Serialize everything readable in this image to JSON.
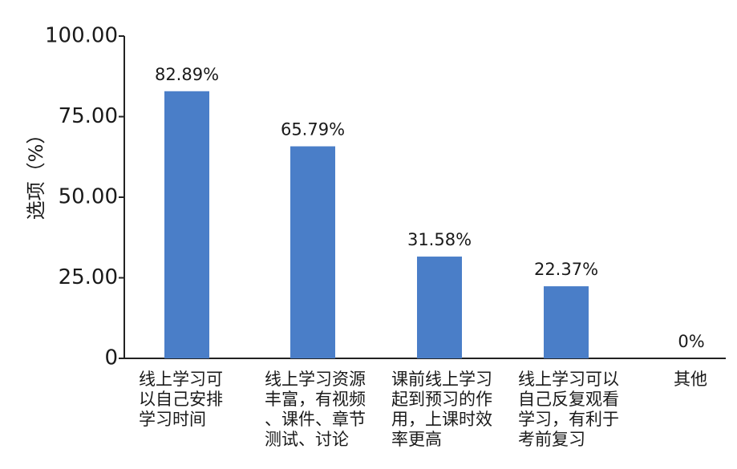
{
  "chart_data": {
    "type": "bar",
    "y_label": "选项（%）",
    "categories": [
      "线上学习可\n以自己安排\n学习时间",
      "线上学习资源\n丰富，有视频\n、课件、章节\n测试、讨论",
      "课前线上学习\n起到预习的作\n用，上课时效\n率更高",
      "线上学习可以\n自己反复观看\n学习，有利于\n考前复习",
      "其他"
    ],
    "values": [
      82.89,
      65.79,
      31.58,
      22.37,
      0
    ],
    "value_labels": [
      "82.89%",
      "65.79%",
      "31.58%",
      "22.37%",
      "0%"
    ],
    "color": "#4a7ec8",
    "ylim": [
      0,
      100
    ],
    "yticks": [
      {
        "value": 0,
        "label": "0"
      },
      {
        "value": 25,
        "label": "25.00"
      },
      {
        "value": 50,
        "label": "50.00"
      },
      {
        "value": 75,
        "label": "75.00"
      },
      {
        "value": 100,
        "label": "100.00"
      }
    ]
  }
}
